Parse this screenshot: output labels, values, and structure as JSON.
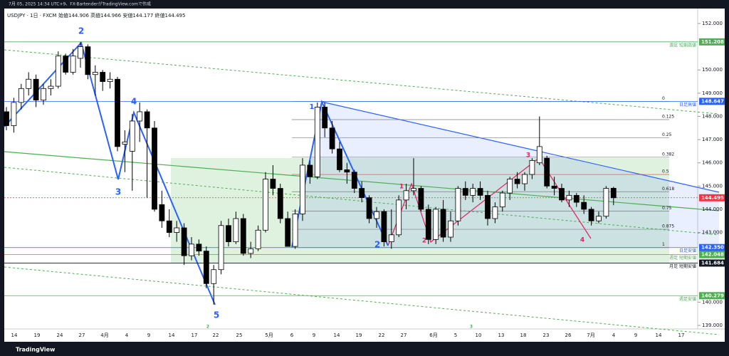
{
  "header": {
    "caption": "7月 05, 2025 14:34 UTC+9、FX-BartenderがTradingView.comで作成",
    "symbol": "USDJPY · 1日 · FXCM",
    "ohlc": "始値144.906 高値144.966 安値144.177 終値144.495"
  },
  "footer": {
    "brand": "TradingView"
  },
  "chart_data": {
    "type": "candlestick",
    "ylim": [
      139,
      152
    ],
    "yticks": [
      {
        "value": 139,
        "label": "139.000"
      },
      {
        "value": 140,
        "label": "140.000"
      },
      {
        "value": 143,
        "label": "143.000"
      },
      {
        "value": 144,
        "label": "144.000"
      },
      {
        "value": 145,
        "label": "145.000"
      },
      {
        "value": 146,
        "label": "146.000"
      },
      {
        "value": 147,
        "label": "147.000"
      },
      {
        "value": 148,
        "label": "148.000"
      },
      {
        "value": 149,
        "label": "149.000"
      },
      {
        "value": 150,
        "label": "150.000"
      },
      {
        "value": 152,
        "label": "152.000"
      }
    ],
    "xlabels": [
      "14",
      "19",
      "24",
      "27",
      "4月",
      "4",
      "9",
      "14",
      "17",
      "22",
      "25",
      "5月",
      "6",
      "9",
      "14",
      "19",
      "22",
      "27",
      "6月",
      "5",
      "10",
      "13",
      "18",
      "23",
      "26",
      "7月",
      "4",
      "9",
      "14",
      "17"
    ],
    "up_color": "#ffffff",
    "down_color": "#000000",
    "candles": [
      [
        148.2,
        148.4,
        147.4,
        147.6
      ],
      [
        147.6,
        148.8,
        147.3,
        148.6
      ],
      [
        148.6,
        149.4,
        148.3,
        149.2
      ],
      [
        149.2,
        149.9,
        148.9,
        149.6
      ],
      [
        149.6,
        149.8,
        148.4,
        148.7
      ],
      [
        148.7,
        149.4,
        148.5,
        149.2
      ],
      [
        149.2,
        149.6,
        148.9,
        149.3
      ],
      [
        149.3,
        150.8,
        149.2,
        150.6
      ],
      [
        150.6,
        150.7,
        149.8,
        149.9
      ],
      [
        149.9,
        150.9,
        149.8,
        150.6
      ],
      [
        150.5,
        151.2,
        150.1,
        151.0
      ],
      [
        151.0,
        151.1,
        149.6,
        149.8
      ],
      [
        149.8,
        150.2,
        148.9,
        149.9
      ],
      [
        149.9,
        150.0,
        149.1,
        149.5
      ],
      [
        149.5,
        149.9,
        149.2,
        149.6
      ],
      [
        149.6,
        149.7,
        146.5,
        146.7
      ],
      [
        146.8,
        147.4,
        145.6,
        146.9
      ],
      [
        146.5,
        148.1,
        144.8,
        147.8
      ],
      [
        147.8,
        148.6,
        146.9,
        148.2
      ],
      [
        148.2,
        148.3,
        144.5,
        147.5
      ],
      [
        147.5,
        147.8,
        143.9,
        144.0
      ],
      [
        144.2,
        144.8,
        143.2,
        143.5
      ],
      [
        143.5,
        144.0,
        142.8,
        143.0
      ],
      [
        143.0,
        143.5,
        142.6,
        143.2
      ],
      [
        143.2,
        143.4,
        141.6,
        142.0
      ],
      [
        142.0,
        142.8,
        141.8,
        142.5
      ],
      [
        142.5,
        142.7,
        142.0,
        142.2
      ],
      [
        142.2,
        142.4,
        140.6,
        140.8
      ],
      [
        140.8,
        141.6,
        139.9,
        141.4
      ],
      [
        141.4,
        143.5,
        141.2,
        143.3
      ],
      [
        143.3,
        143.6,
        142.4,
        142.6
      ],
      [
        142.6,
        143.9,
        142.5,
        143.6
      ],
      [
        143.6,
        143.8,
        142.0,
        142.1
      ],
      [
        142.1,
        142.6,
        141.9,
        142.3
      ],
      [
        142.3,
        143.3,
        142.2,
        143.1
      ],
      [
        143.1,
        145.6,
        143.0,
        145.3
      ],
      [
        145.3,
        145.9,
        144.6,
        144.9
      ],
      [
        144.9,
        145.1,
        143.4,
        143.6
      ],
      [
        143.6,
        143.9,
        142.4,
        142.4
      ],
      [
        142.4,
        144.0,
        142.3,
        143.8
      ],
      [
        143.8,
        146.2,
        143.5,
        145.9
      ],
      [
        145.9,
        146.1,
        145.1,
        145.4
      ],
      [
        145.4,
        148.6,
        145.3,
        148.4
      ],
      [
        148.4,
        148.6,
        147.1,
        147.5
      ],
      [
        147.5,
        147.8,
        146.4,
        146.6
      ],
      [
        146.6,
        146.9,
        145.6,
        145.7
      ],
      [
        145.7,
        146.0,
        145.1,
        145.6
      ],
      [
        145.6,
        145.7,
        144.7,
        144.9
      ],
      [
        144.9,
        145.2,
        144.3,
        144.5
      ],
      [
        144.5,
        144.6,
        143.4,
        143.6
      ],
      [
        143.6,
        144.1,
        143.2,
        143.9
      ],
      [
        143.9,
        144.0,
        142.4,
        142.6
      ],
      [
        142.6,
        144.0,
        142.3,
        142.9
      ],
      [
        142.9,
        144.6,
        142.8,
        144.4
      ],
      [
        144.4,
        145.1,
        144.0,
        144.8
      ],
      [
        144.8,
        146.2,
        144.6,
        144.9
      ],
      [
        144.9,
        145.0,
        143.9,
        144.0
      ],
      [
        144.0,
        144.2,
        142.5,
        142.7
      ],
      [
        142.7,
        144.1,
        142.5,
        144.0
      ],
      [
        144.0,
        144.4,
        142.6,
        142.8
      ],
      [
        142.8,
        143.9,
        142.6,
        143.5
      ],
      [
        143.5,
        145.0,
        143.3,
        144.9
      ],
      [
        144.9,
        145.2,
        144.4,
        144.6
      ],
      [
        144.6,
        145.1,
        144.3,
        144.9
      ],
      [
        144.9,
        145.2,
        144.4,
        144.6
      ],
      [
        144.6,
        144.8,
        143.3,
        143.6
      ],
      [
        143.6,
        144.3,
        143.4,
        144.1
      ],
      [
        144.1,
        144.8,
        143.9,
        144.7
      ],
      [
        144.7,
        145.4,
        144.4,
        145.3
      ],
      [
        145.3,
        145.6,
        144.9,
        145.1
      ],
      [
        145.1,
        145.6,
        144.8,
        145.5
      ],
      [
        145.5,
        146.2,
        145.3,
        146.1
      ],
      [
        146.0,
        148.0,
        145.9,
        146.7
      ],
      [
        146.2,
        146.3,
        144.9,
        145.0
      ],
      [
        145.0,
        145.4,
        144.6,
        144.9
      ],
      [
        144.9,
        145.1,
        144.3,
        144.4
      ],
      [
        144.4,
        144.8,
        144.1,
        144.6
      ],
      [
        144.6,
        144.7,
        144.1,
        144.3
      ],
      [
        144.3,
        144.6,
        143.8,
        144.0
      ],
      [
        144.0,
        144.1,
        143.3,
        143.5
      ],
      [
        143.5,
        143.9,
        143.4,
        143.7
      ],
      [
        143.7,
        145.0,
        143.6,
        144.9
      ],
      [
        144.906,
        144.966,
        144.177,
        144.495
      ]
    ],
    "hlines": [
      {
        "value": 151.208,
        "label": "151.208",
        "tag": "週足 短期高値",
        "color": "#4caf50"
      },
      {
        "value": 148.647,
        "label": "148.647",
        "tag": "日足高値",
        "color": "#2962ff"
      },
      {
        "value": 144.495,
        "label": "144.495",
        "color": "#f23645"
      },
      {
        "value": 142.35,
        "label": "142.350",
        "tag": "日足安値",
        "color": "#2962ff"
      },
      {
        "value": 142.048,
        "label": "142.048",
        "tag": "週足 短期安値",
        "color": "#4caf50"
      },
      {
        "value": 141.684,
        "label": "141.684",
        "tag": "月足 短期安値",
        "color": "#131722"
      },
      {
        "value": 140.279,
        "label": "140.279",
        "tag": "週足安値",
        "color": "#4caf50"
      }
    ],
    "fib_levels": [
      0,
      0.125,
      0.25,
      0.382,
      0.5,
      0.618,
      0.75,
      0.875,
      1
    ],
    "waves": [
      "2",
      "4",
      "3",
      "5",
      "1",
      "2",
      "1",
      "2",
      "3",
      "4",
      "2",
      "3"
    ]
  }
}
